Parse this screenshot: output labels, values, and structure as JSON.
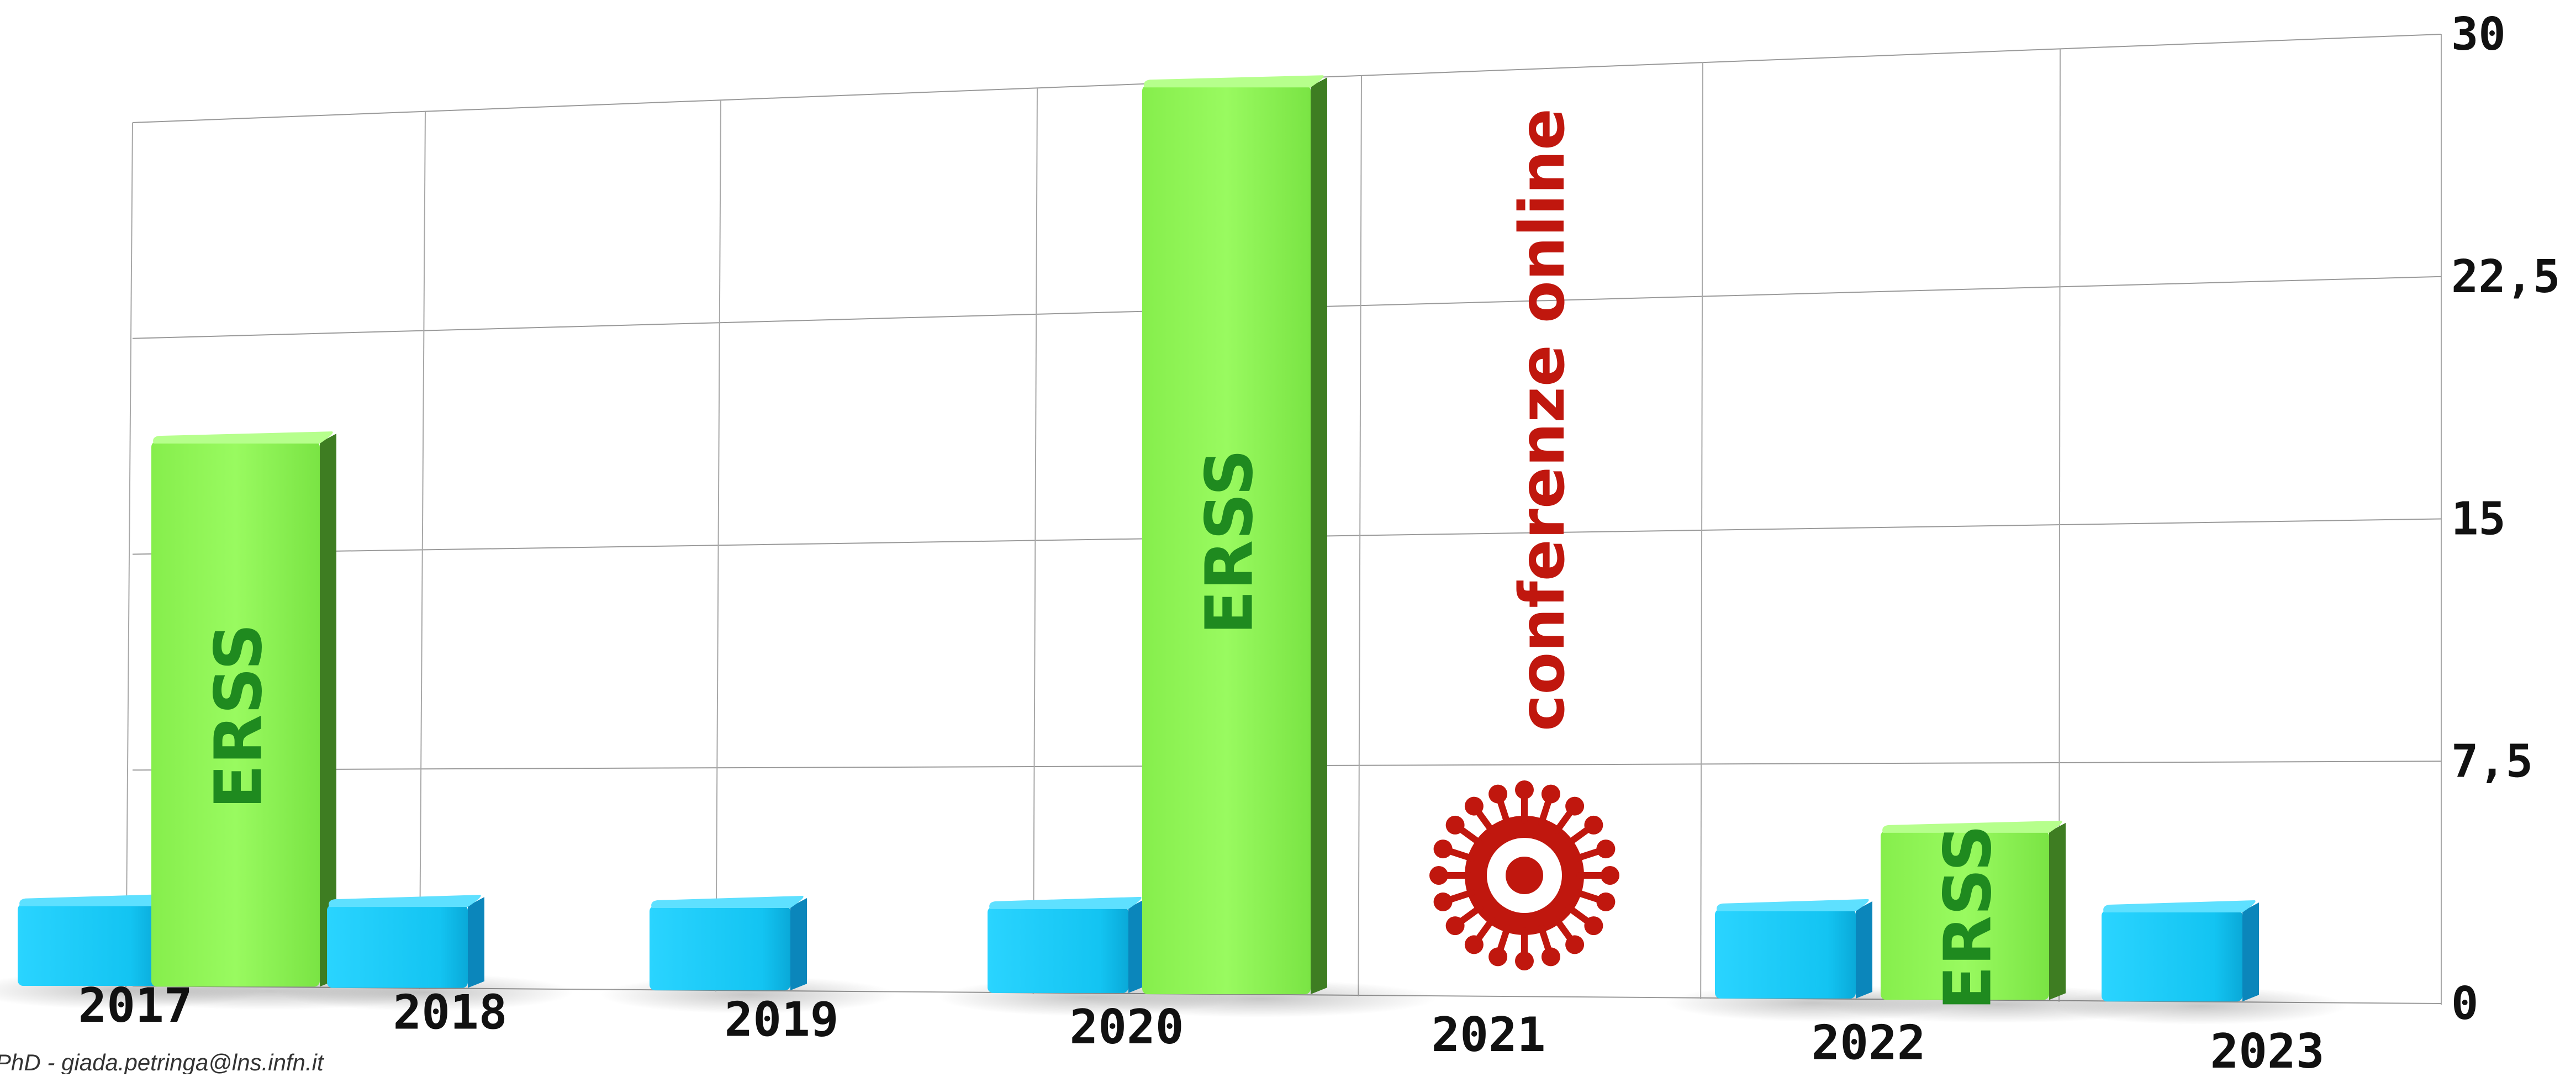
{
  "chart_data": {
    "type": "bar",
    "categories": [
      "2017",
      "2018",
      "2019",
      "2020",
      "2021",
      "2022",
      "2023"
    ],
    "series": [
      {
        "values": [
          3,
          3,
          3,
          3,
          0,
          3,
          3
        ],
        "color": "#1ec8f5"
      },
      {
        "values": [
          19,
          null,
          null,
          30,
          null,
          5.5,
          null
        ],
        "color": "#8ef55a",
        "bar_label": "ERSS"
      }
    ],
    "y_ticks": [
      "0",
      "7,5",
      "15",
      "22,5",
      "30"
    ],
    "y_tick_values": [
      0,
      7.5,
      15,
      22.5,
      30
    ],
    "ylim": [
      0,
      30
    ],
    "grid": true,
    "y_axis_side": "right",
    "annotations": [
      {
        "category": "2021",
        "text": "conferenze online",
        "icon": "virus-icon",
        "color": "#c0170e"
      }
    ]
  },
  "footer": {
    "credit": "PhD - giada.petringa@lns.infn.it"
  }
}
